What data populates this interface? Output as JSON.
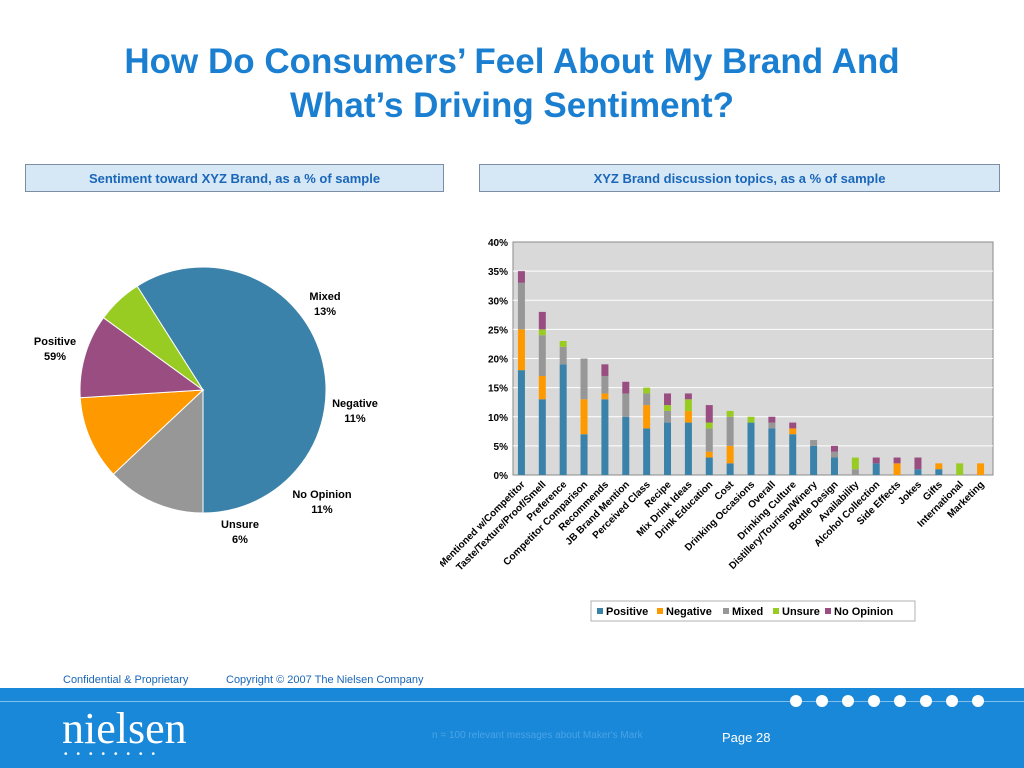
{
  "title": {
    "line1": "How Do Consumers’ Feel About My Brand And",
    "line2": "What’s Driving Sentiment?"
  },
  "panels": {
    "pie_header": "Sentiment toward XYZ Brand, as a % of sample",
    "bar_header": "XYZ Brand discussion topics, as a % of sample"
  },
  "chart_data": [
    {
      "type": "pie",
      "labels": [
        "Positive",
        "Mixed",
        "Negative",
        "No Opinion",
        "Unsure"
      ],
      "values": [
        59,
        13,
        11,
        11,
        6
      ],
      "value_labels": [
        "59%",
        "13%",
        "11%",
        "11%",
        "6%"
      ],
      "colors": [
        "#3a82a9",
        "#979797",
        "#ff9900",
        "#994d80",
        "#99cc22"
      ]
    },
    {
      "type": "bar",
      "stacked": true,
      "categories": [
        "Mentioned w/Competitor",
        "Taste/Texture/Proof/Smell",
        "Preference",
        "Competitor Comparison",
        "Recommends",
        "JB Brand Mention",
        "Perceived Class",
        "Recipe",
        "Mix Drink Ideas",
        "Drink Education",
        "Cost",
        "Drinking Occasions",
        "Overall",
        "Drinking Culture",
        "Distillery/Tourism/Winery",
        "Bottle Design",
        "Availability",
        "Alcohol Collection",
        "Side Effects",
        "Jokes",
        "Gifts",
        "International",
        "Marketing"
      ],
      "series": [
        {
          "name": "Positive",
          "color": "#3a82a9",
          "values": [
            18,
            13,
            19,
            7,
            13,
            10,
            8,
            9,
            9,
            3,
            2,
            9,
            8,
            7,
            5,
            3,
            0,
            2,
            0,
            1,
            1,
            0,
            0
          ]
        },
        {
          "name": "Negative",
          "color": "#ff9900",
          "values": [
            7,
            4,
            0,
            6,
            1,
            0,
            4,
            0,
            2,
            1,
            3,
            0,
            0,
            1,
            0,
            0,
            0,
            0,
            2,
            0,
            1,
            0,
            2
          ]
        },
        {
          "name": "Mixed",
          "color": "#979797",
          "values": [
            8,
            7,
            3,
            7,
            3,
            4,
            2,
            2,
            0,
            4,
            5,
            0,
            1,
            0,
            1,
            1,
            1,
            0,
            0,
            0,
            0,
            0,
            0
          ]
        },
        {
          "name": "Unsure",
          "color": "#99cc22",
          "values": [
            0,
            1,
            1,
            0,
            0,
            0,
            1,
            1,
            2,
            1,
            1,
            1,
            0,
            0,
            0,
            0,
            2,
            0,
            0,
            0,
            0,
            2,
            0
          ]
        },
        {
          "name": "No Opinion",
          "color": "#994d80",
          "values": [
            2,
            3,
            0,
            0,
            2,
            2,
            0,
            2,
            1,
            3,
            0,
            0,
            1,
            1,
            0,
            1,
            0,
            1,
            1,
            2,
            0,
            0,
            0
          ]
        }
      ],
      "ylim": [
        0,
        40
      ],
      "yticks": [
        "0%",
        "5%",
        "10%",
        "15%",
        "20%",
        "25%",
        "30%",
        "35%",
        "40%"
      ],
      "grid": true,
      "legend_position": "bottom"
    }
  ],
  "footer": {
    "confidential": "Confidential & Proprietary",
    "copyright": "Copyright © 2007 The Nielsen Company",
    "logo_text": "nielsen",
    "logo_dots": "••••••••",
    "note": "n = 100 relevant messages about Maker's Mark",
    "page": "Page 28"
  }
}
